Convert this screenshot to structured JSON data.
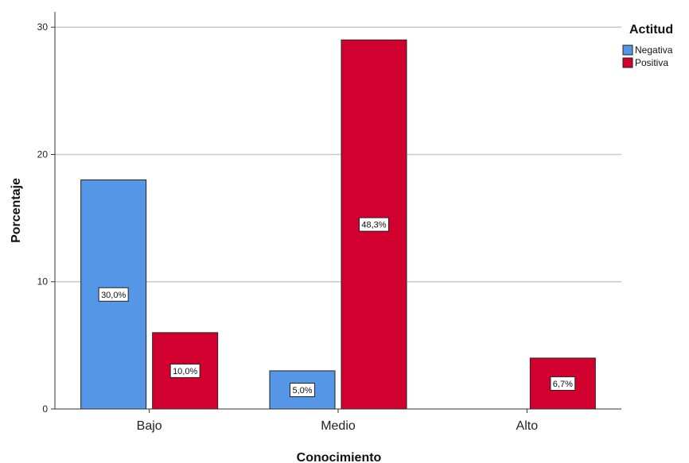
{
  "chart_data": {
    "type": "bar",
    "categories": [
      "Bajo",
      "Medio",
      "Alto"
    ],
    "series": [
      {
        "name": "Negativa",
        "color": "#5596e6",
        "values": [
          18,
          3,
          0
        ],
        "labels": [
          "30,0%",
          "5,0%",
          ""
        ]
      },
      {
        "name": "Positiva",
        "color": "#d1002e",
        "values": [
          6,
          29,
          4
        ],
        "labels": [
          "10,0%",
          "48,3%",
          "6,7%"
        ]
      }
    ],
    "xlabel": "Conocimiento",
    "ylabel": "Porcentaje",
    "ylim": [
      0,
      31.2
    ],
    "yticks": [
      0,
      10,
      20,
      30
    ],
    "legend_title": "Actitud",
    "legend_position": "top-right",
    "grid": true
  }
}
